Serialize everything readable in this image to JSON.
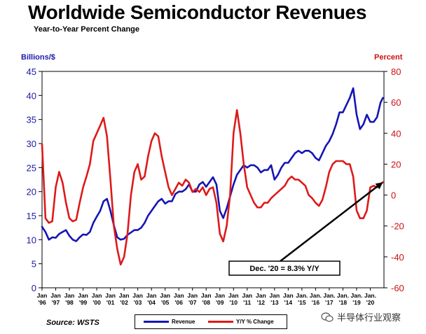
{
  "chart_data": {
    "type": "line",
    "title": "Worldwide Semiconductor Revenues",
    "subtitle": "Year-to-Year Percent Change",
    "y_left_label": "Billions/$",
    "y_right_label": "Percent",
    "y_left_range": [
      0,
      45
    ],
    "y_right_range": [
      -60,
      80
    ],
    "y_left_ticks": [
      "0",
      "5",
      "10",
      "15",
      "20",
      "25",
      "30",
      "35",
      "40",
      "45"
    ],
    "y_right_ticks": [
      "-60",
      "-40",
      "-20",
      "0",
      "20",
      "40",
      "60",
      "80"
    ],
    "x_range": [
      1996.0,
      2021.0
    ],
    "x_tick_labels": [
      {
        "top": "Jan",
        "bottom": "'96"
      },
      {
        "top": "Jan",
        "bottom": "'97"
      },
      {
        "top": "Jan",
        "bottom": "'98"
      },
      {
        "top": "Jan",
        "bottom": "'99"
      },
      {
        "top": "Jan",
        "bottom": "'00"
      },
      {
        "top": "Jan",
        "bottom": "'01"
      },
      {
        "top": "Jan",
        "bottom": "'02"
      },
      {
        "top": "Jan",
        "bottom": "'03"
      },
      {
        "top": "Jan",
        "bottom": "'04"
      },
      {
        "top": "Jan",
        "bottom": "'05"
      },
      {
        "top": "Jan",
        "bottom": "'06"
      },
      {
        "top": "Jan",
        "bottom": "'07"
      },
      {
        "top": "Jan",
        "bottom": "'08"
      },
      {
        "top": "Jan",
        "bottom": "'09"
      },
      {
        "top": "Jan",
        "bottom": "'10"
      },
      {
        "top": "Jan",
        "bottom": "'11"
      },
      {
        "top": "Jan",
        "bottom": "'12"
      },
      {
        "top": "Jan",
        "bottom": "'13"
      },
      {
        "top": "Jan",
        "bottom": "'14"
      },
      {
        "top": "Jan.",
        "bottom": "'15"
      },
      {
        "top": "Jan.",
        "bottom": "'16"
      },
      {
        "top": "Jan.",
        "bottom": "'17"
      },
      {
        "top": "Jan.",
        "bottom": "'18"
      },
      {
        "top": "Jan.",
        "bottom": "'19"
      },
      {
        "top": "Jan.",
        "bottom": "'20"
      }
    ],
    "grid": false,
    "legend_position": "bottom-center",
    "series": [
      {
        "name": "Revenue",
        "axis": "left",
        "color": "#1515b5",
        "points": [
          [
            1996.0,
            12.7
          ],
          [
            1996.25,
            11.6
          ],
          [
            1996.5,
            10.0
          ],
          [
            1996.75,
            10.5
          ],
          [
            1997.0,
            10.4
          ],
          [
            1997.25,
            11.2
          ],
          [
            1997.5,
            11.6
          ],
          [
            1997.75,
            12.0
          ],
          [
            1998.0,
            10.8
          ],
          [
            1998.25,
            10.0
          ],
          [
            1998.5,
            9.7
          ],
          [
            1998.75,
            10.5
          ],
          [
            1999.0,
            11.1
          ],
          [
            1999.25,
            11.0
          ],
          [
            1999.5,
            11.6
          ],
          [
            1999.75,
            13.5
          ],
          [
            2000.0,
            14.8
          ],
          [
            2000.25,
            16.0
          ],
          [
            2000.5,
            18.0
          ],
          [
            2000.75,
            18.5
          ],
          [
            2001.0,
            16.0
          ],
          [
            2001.25,
            13.0
          ],
          [
            2001.5,
            10.5
          ],
          [
            2001.75,
            10.0
          ],
          [
            2002.0,
            10.2
          ],
          [
            2002.25,
            11.0
          ],
          [
            2002.5,
            11.5
          ],
          [
            2002.75,
            12.0
          ],
          [
            2003.0,
            12.0
          ],
          [
            2003.25,
            12.5
          ],
          [
            2003.5,
            13.5
          ],
          [
            2003.75,
            15.0
          ],
          [
            2004.0,
            16.0
          ],
          [
            2004.25,
            17.0
          ],
          [
            2004.5,
            18.0
          ],
          [
            2004.75,
            18.5
          ],
          [
            2005.0,
            17.5
          ],
          [
            2005.25,
            18.0
          ],
          [
            2005.5,
            18.0
          ],
          [
            2005.75,
            19.5
          ],
          [
            2006.0,
            20.0
          ],
          [
            2006.25,
            20.0
          ],
          [
            2006.5,
            20.5
          ],
          [
            2006.75,
            21.5
          ],
          [
            2007.0,
            20.0
          ],
          [
            2007.25,
            20.0
          ],
          [
            2007.5,
            21.5
          ],
          [
            2007.75,
            22.0
          ],
          [
            2008.0,
            21.0
          ],
          [
            2008.25,
            22.0
          ],
          [
            2008.5,
            23.0
          ],
          [
            2008.75,
            21.5
          ],
          [
            2009.0,
            16.0
          ],
          [
            2009.25,
            14.5
          ],
          [
            2009.5,
            16.5
          ],
          [
            2009.75,
            19.0
          ],
          [
            2010.0,
            21.5
          ],
          [
            2010.25,
            23.5
          ],
          [
            2010.5,
            24.5
          ],
          [
            2010.75,
            25.5
          ],
          [
            2011.0,
            25.0
          ],
          [
            2011.25,
            25.5
          ],
          [
            2011.5,
            25.5
          ],
          [
            2011.75,
            25.0
          ],
          [
            2012.0,
            24.0
          ],
          [
            2012.25,
            24.5
          ],
          [
            2012.5,
            24.5
          ],
          [
            2012.75,
            25.5
          ],
          [
            2013.0,
            22.5
          ],
          [
            2013.25,
            23.5
          ],
          [
            2013.5,
            25.0
          ],
          [
            2013.75,
            26.0
          ],
          [
            2014.0,
            26.0
          ],
          [
            2014.25,
            27.0
          ],
          [
            2014.5,
            28.0
          ],
          [
            2014.75,
            28.5
          ],
          [
            2015.0,
            28.0
          ],
          [
            2015.25,
            28.5
          ],
          [
            2015.5,
            28.5
          ],
          [
            2015.75,
            28.0
          ],
          [
            2016.0,
            27.0
          ],
          [
            2016.25,
            26.5
          ],
          [
            2016.5,
            28.0
          ],
          [
            2016.75,
            29.5
          ],
          [
            2017.0,
            30.5
          ],
          [
            2017.25,
            32.0
          ],
          [
            2017.5,
            34.0
          ],
          [
            2017.75,
            36.5
          ],
          [
            2018.0,
            36.5
          ],
          [
            2018.25,
            38.0
          ],
          [
            2018.5,
            39.5
          ],
          [
            2018.75,
            41.5
          ],
          [
            2019.0,
            36.0
          ],
          [
            2019.25,
            33.0
          ],
          [
            2019.5,
            34.0
          ],
          [
            2019.75,
            36.0
          ],
          [
            2020.0,
            34.5
          ],
          [
            2020.25,
            34.5
          ],
          [
            2020.5,
            35.5
          ],
          [
            2020.75,
            38.5
          ],
          [
            2020.92,
            39.5
          ]
        ]
      },
      {
        "name": "Y/Y % Change",
        "axis": "right",
        "color": "#dd1a1a",
        "points": [
          [
            1996.0,
            33
          ],
          [
            1996.25,
            -15
          ],
          [
            1996.5,
            -18
          ],
          [
            1996.75,
            -17
          ],
          [
            1997.0,
            5
          ],
          [
            1997.25,
            15
          ],
          [
            1997.5,
            8
          ],
          [
            1997.75,
            -5
          ],
          [
            1998.0,
            -15
          ],
          [
            1998.25,
            -17
          ],
          [
            1998.5,
            -16
          ],
          [
            1998.75,
            -5
          ],
          [
            1999.0,
            5
          ],
          [
            1999.25,
            12
          ],
          [
            1999.5,
            20
          ],
          [
            1999.75,
            35
          ],
          [
            2000.0,
            40
          ],
          [
            2000.25,
            45
          ],
          [
            2000.5,
            50
          ],
          [
            2000.75,
            38
          ],
          [
            2001.0,
            10
          ],
          [
            2001.25,
            -20
          ],
          [
            2001.5,
            -35
          ],
          [
            2001.75,
            -45
          ],
          [
            2002.0,
            -40
          ],
          [
            2002.25,
            -25
          ],
          [
            2002.5,
            0
          ],
          [
            2002.75,
            15
          ],
          [
            2003.0,
            20
          ],
          [
            2003.25,
            10
          ],
          [
            2003.5,
            12
          ],
          [
            2003.75,
            25
          ],
          [
            2004.0,
            35
          ],
          [
            2004.25,
            40
          ],
          [
            2004.5,
            38
          ],
          [
            2004.75,
            25
          ],
          [
            2005.0,
            15
          ],
          [
            2005.25,
            5
          ],
          [
            2005.5,
            0
          ],
          [
            2005.75,
            4
          ],
          [
            2006.0,
            8
          ],
          [
            2006.25,
            6
          ],
          [
            2006.5,
            10
          ],
          [
            2006.75,
            8
          ],
          [
            2007.0,
            2
          ],
          [
            2007.25,
            4
          ],
          [
            2007.5,
            2
          ],
          [
            2007.75,
            5
          ],
          [
            2008.0,
            0
          ],
          [
            2008.25,
            4
          ],
          [
            2008.5,
            5
          ],
          [
            2008.75,
            -5
          ],
          [
            2009.0,
            -25
          ],
          [
            2009.25,
            -30
          ],
          [
            2009.5,
            -20
          ],
          [
            2009.75,
            0
          ],
          [
            2010.0,
            40
          ],
          [
            2010.25,
            55
          ],
          [
            2010.5,
            40
          ],
          [
            2010.75,
            20
          ],
          [
            2011.0,
            5
          ],
          [
            2011.25,
            0
          ],
          [
            2011.5,
            -5
          ],
          [
            2011.75,
            -8
          ],
          [
            2012.0,
            -8
          ],
          [
            2012.25,
            -5
          ],
          [
            2012.5,
            -5
          ],
          [
            2012.75,
            -2
          ],
          [
            2013.0,
            0
          ],
          [
            2013.25,
            2
          ],
          [
            2013.5,
            4
          ],
          [
            2013.75,
            6
          ],
          [
            2014.0,
            10
          ],
          [
            2014.25,
            12
          ],
          [
            2014.5,
            10
          ],
          [
            2014.75,
            10
          ],
          [
            2015.0,
            8
          ],
          [
            2015.25,
            6
          ],
          [
            2015.5,
            0
          ],
          [
            2015.75,
            -2
          ],
          [
            2016.0,
            -5
          ],
          [
            2016.25,
            -7
          ],
          [
            2016.5,
            -3
          ],
          [
            2016.75,
            5
          ],
          [
            2017.0,
            15
          ],
          [
            2017.25,
            20
          ],
          [
            2017.5,
            22
          ],
          [
            2017.75,
            22
          ],
          [
            2018.0,
            22
          ],
          [
            2018.25,
            20
          ],
          [
            2018.5,
            20
          ],
          [
            2018.75,
            12
          ],
          [
            2019.0,
            -10
          ],
          [
            2019.25,
            -15
          ],
          [
            2019.5,
            -15
          ],
          [
            2019.75,
            -10
          ],
          [
            2020.0,
            5
          ],
          [
            2020.25,
            6
          ],
          [
            2020.5,
            5
          ],
          [
            2020.75,
            7
          ],
          [
            2020.92,
            8.3
          ]
        ]
      }
    ],
    "annotations": [
      {
        "text": "Dec. '20 = 8.3% Y/Y",
        "arrow_to": {
          "x": 2020.92,
          "y_right": 8.3
        }
      }
    ]
  },
  "source": "Source: WSTS",
  "watermark": "半导体行业观察"
}
